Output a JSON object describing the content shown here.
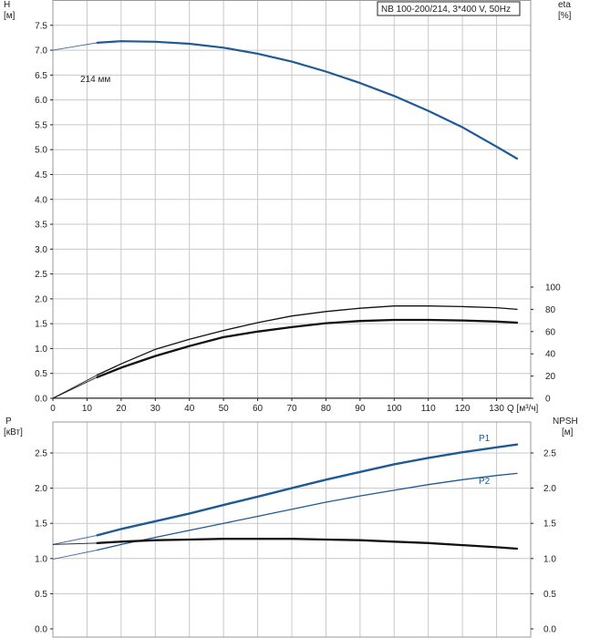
{
  "chart_data": [
    {
      "type": "line",
      "panel": "head-efficiency",
      "title": "NB 100-200/214, 3*400 V, 50Hz",
      "xlabel": "Q [м³/ч]",
      "xlim": [
        0,
        140
      ],
      "x_ticks": [
        0,
        10,
        20,
        30,
        40,
        50,
        60,
        70,
        80,
        90,
        100,
        110,
        120,
        130
      ],
      "ylabel_left": "H\n[м]",
      "ylim_left": [
        0,
        8
      ],
      "y_ticks_left": [
        "0.0",
        "0.5",
        "1.0",
        "1.5",
        "2.0",
        "2.5",
        "3.0",
        "3.5",
        "4.0",
        "4.5",
        "5.0",
        "5.5",
        "6.0",
        "6.5",
        "7.0",
        "7.5"
      ],
      "ylabel_right": "eta\n[%]",
      "ylim_right": [
        0,
        100
      ],
      "y_ticks_right": [
        0,
        20,
        40,
        60,
        80,
        100
      ],
      "series": [
        {
          "name": "H",
          "label": "214 мм",
          "axis": "left",
          "color": "#1f5a96",
          "extrapolated_to_zero": true,
          "x": [
            13,
            20,
            30,
            40,
            50,
            60,
            70,
            80,
            90,
            100,
            110,
            120,
            130,
            136
          ],
          "y": [
            7.15,
            7.18,
            7.17,
            7.13,
            7.05,
            6.93,
            6.77,
            6.57,
            6.34,
            6.08,
            5.78,
            5.45,
            5.06,
            4.82
          ]
        },
        {
          "name": "eta-thin",
          "axis": "right",
          "color": "#111111",
          "extrapolated_to_zero": true,
          "x": [
            13,
            20,
            30,
            40,
            50,
            60,
            70,
            80,
            90,
            100,
            110,
            120,
            130,
            136
          ],
          "y": [
            21,
            31,
            44,
            53,
            61,
            68,
            74,
            78,
            81,
            83,
            83,
            82.5,
            81.5,
            80
          ]
        },
        {
          "name": "eta-thick",
          "axis": "right",
          "color": "#111111",
          "extrapolated_to_zero": true,
          "x": [
            13,
            20,
            30,
            40,
            50,
            60,
            70,
            80,
            90,
            100,
            110,
            120,
            130,
            136
          ],
          "y": [
            19,
            27.5,
            38,
            47,
            55,
            60,
            64,
            67.5,
            69.5,
            70.5,
            70.5,
            70,
            69,
            68
          ]
        }
      ]
    },
    {
      "type": "line",
      "panel": "power-npsh",
      "xlim": [
        0,
        140
      ],
      "ylabel_left": "P\n[кВт]",
      "ylim_left": [
        0,
        2.9
      ],
      "y_ticks_left": [
        "0.0",
        "0.5",
        "1.0",
        "1.5",
        "2.0",
        "2.5"
      ],
      "ylabel_right": "NPSH\n[м]",
      "ylim_right": [
        0,
        2.9
      ],
      "y_ticks_right": [
        "0.0",
        "0.5",
        "1.0",
        "1.5",
        "2.0",
        "2.5"
      ],
      "series": [
        {
          "name": "P1",
          "label": "P1",
          "axis": "left",
          "color": "#1f5a96",
          "extrapolated_to_zero": true,
          "x": [
            13,
            20,
            30,
            40,
            50,
            60,
            70,
            80,
            90,
            100,
            110,
            120,
            130,
            136
          ],
          "y": [
            1.33,
            1.42,
            1.53,
            1.64,
            1.76,
            1.88,
            2.0,
            2.12,
            2.23,
            2.34,
            2.43,
            2.51,
            2.58,
            2.62
          ]
        },
        {
          "name": "P2",
          "label": "P2",
          "axis": "left",
          "color": "#1f5a96",
          "extrapolated_to_zero": true,
          "x": [
            13,
            20,
            30,
            40,
            50,
            60,
            70,
            80,
            90,
            100,
            110,
            120,
            130,
            136
          ],
          "y": [
            1.12,
            1.2,
            1.3,
            1.4,
            1.5,
            1.6,
            1.7,
            1.8,
            1.89,
            1.97,
            2.05,
            2.12,
            2.18,
            2.21
          ]
        },
        {
          "name": "NPSH",
          "axis": "right",
          "color": "#111111",
          "extrapolated_to_zero": true,
          "x": [
            13,
            20,
            30,
            40,
            50,
            60,
            70,
            80,
            90,
            100,
            110,
            120,
            130,
            136
          ],
          "y": [
            1.22,
            1.24,
            1.26,
            1.27,
            1.28,
            1.28,
            1.28,
            1.27,
            1.26,
            1.24,
            1.22,
            1.19,
            1.16,
            1.14
          ]
        }
      ]
    }
  ]
}
